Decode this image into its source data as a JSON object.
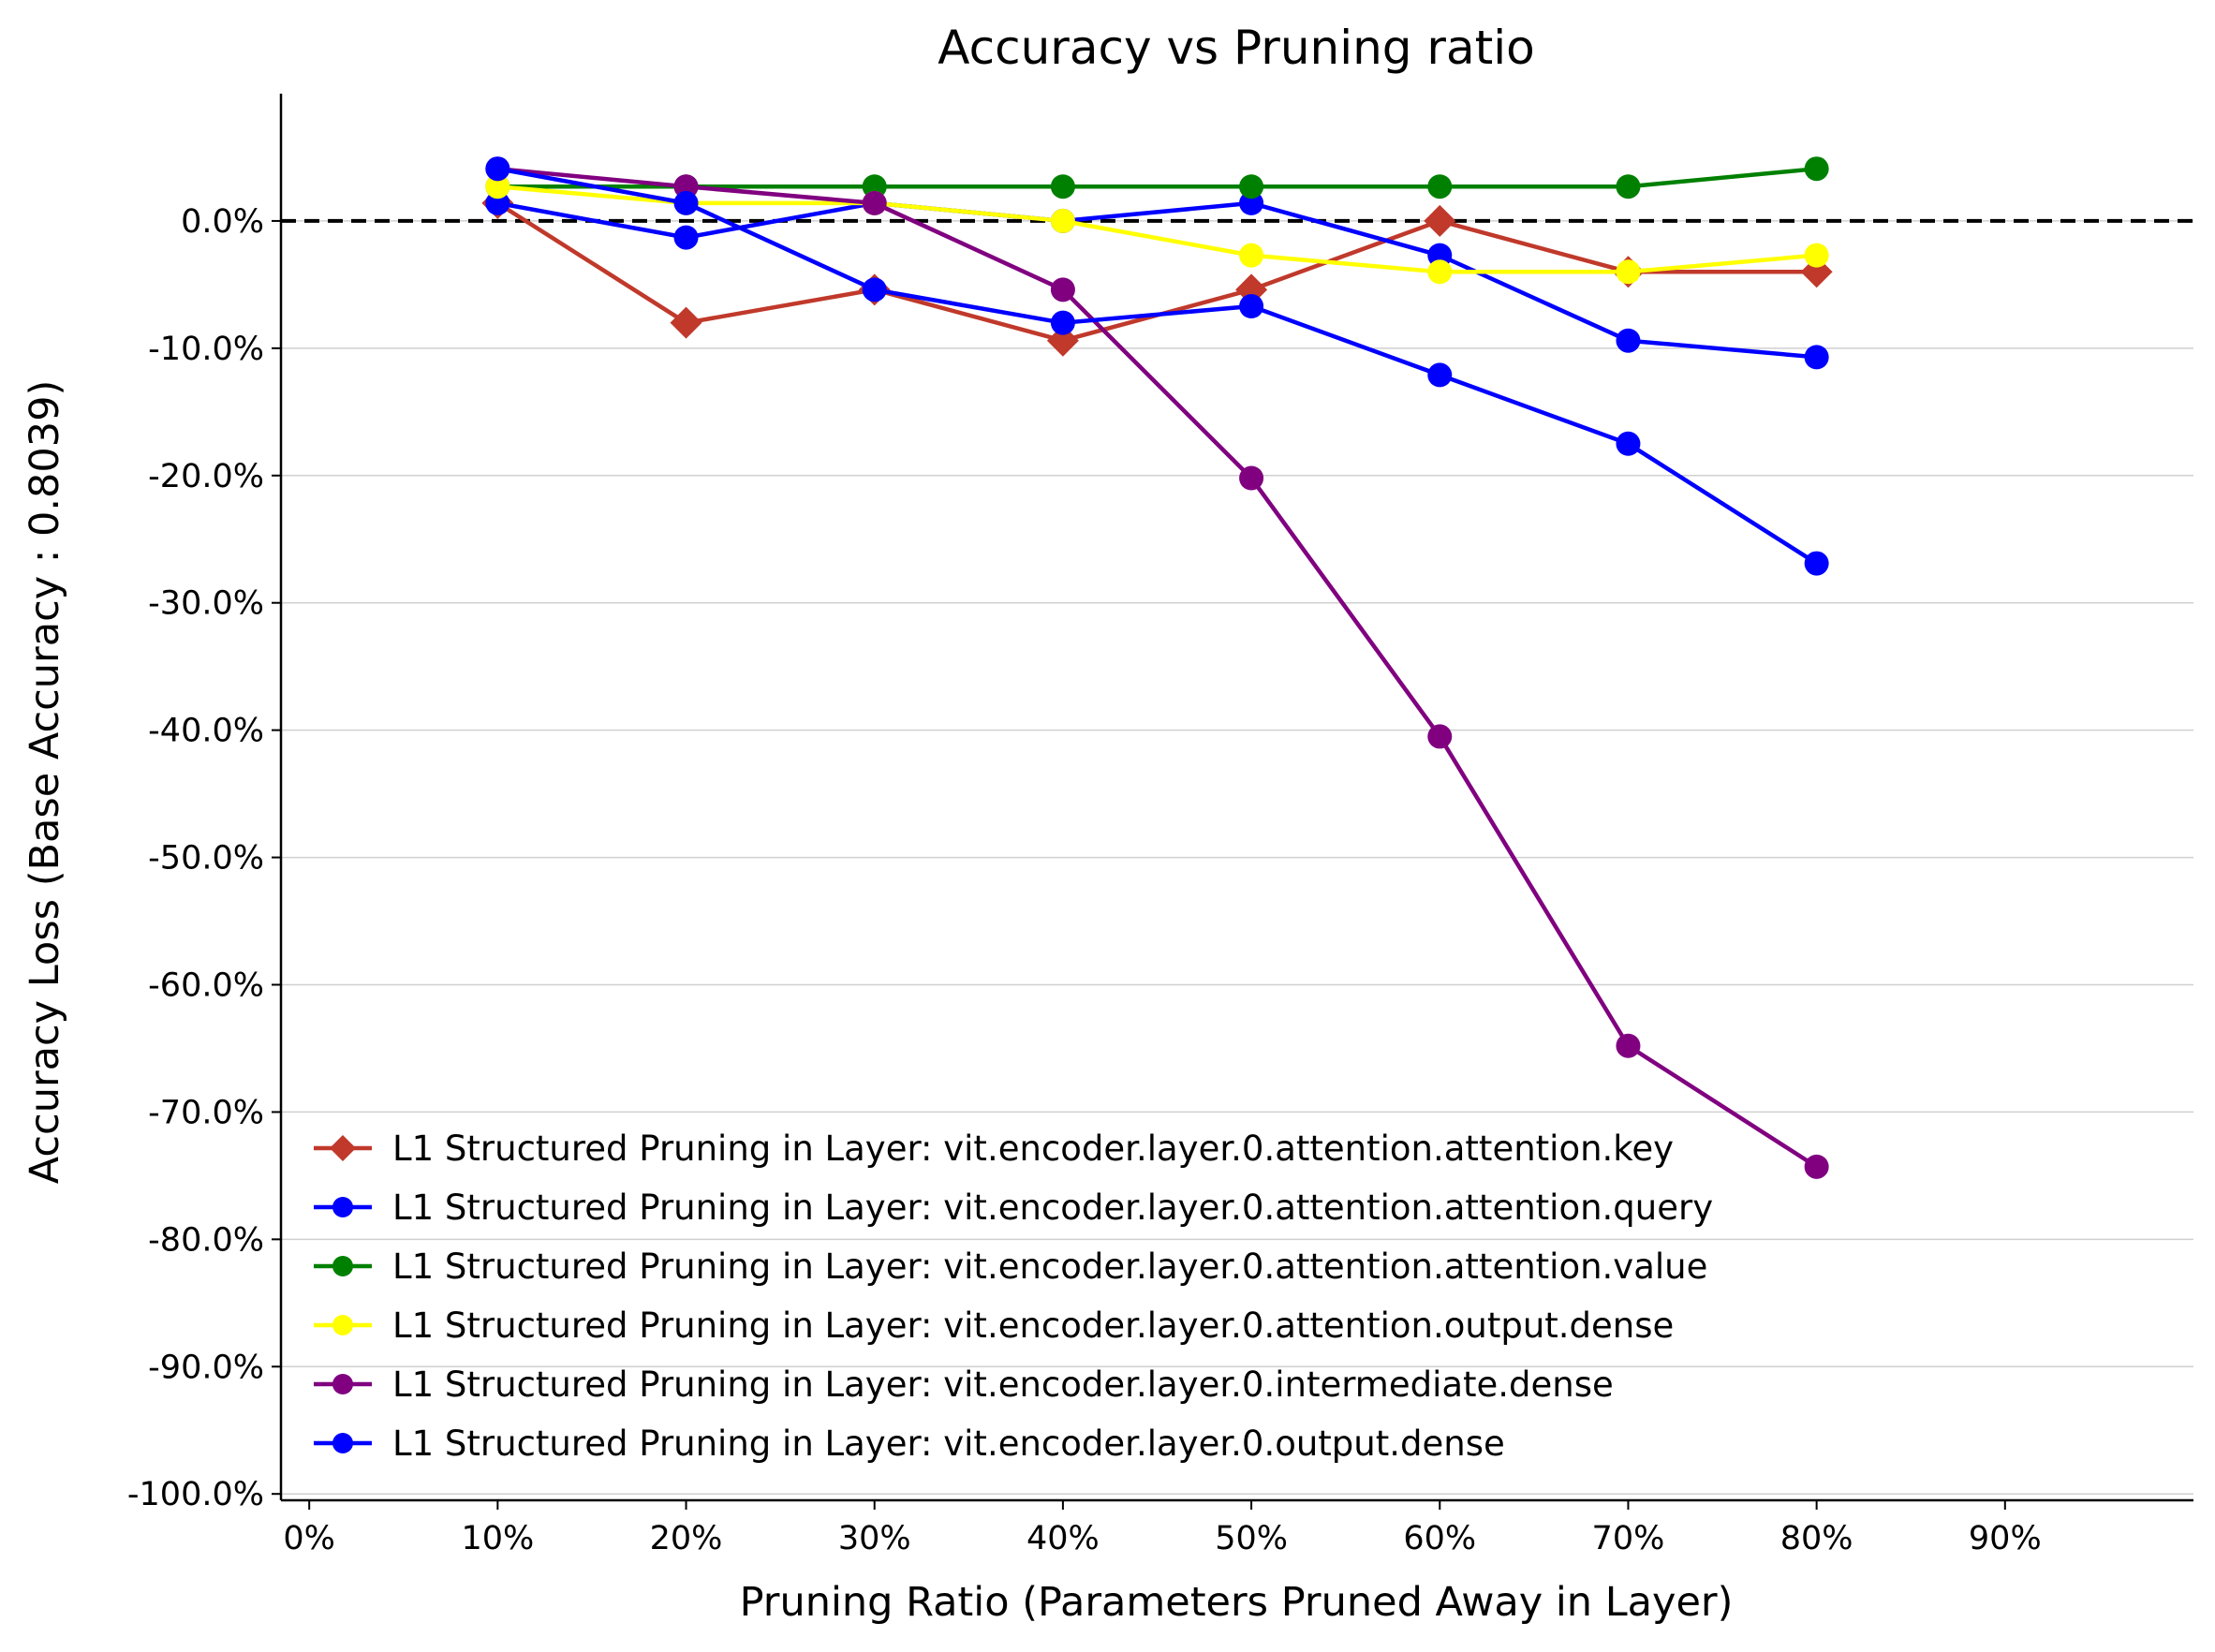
{
  "chart_data": {
    "type": "line",
    "title": "Accuracy vs Pruning ratio",
    "xlabel": "Pruning Ratio (Parameters Pruned Away in Layer)",
    "ylabel": "Accuracy Loss (Base Accuracy : 0.8039)",
    "xlim": [
      -0.015,
      1.0
    ],
    "ylim": [
      -1.005,
      0.1
    ],
    "x_ticks": [
      0.0,
      0.1,
      0.2,
      0.3,
      0.4,
      0.5,
      0.6,
      0.7,
      0.8,
      0.9
    ],
    "x_tick_labels": [
      "0%",
      "10%",
      "20%",
      "30%",
      "40%",
      "50%",
      "60%",
      "70%",
      "80%",
      "90%"
    ],
    "y_ticks": [
      0.0,
      -0.1,
      -0.2,
      -0.3,
      -0.4,
      -0.5,
      -0.6,
      -0.7,
      -0.8,
      -0.9,
      -1.0
    ],
    "y_tick_labels": [
      "0.0%",
      "-10.0%",
      "-20.0%",
      "-30.0%",
      "-40.0%",
      "-50.0%",
      "-60.0%",
      "-70.0%",
      "-80.0%",
      "-90.0%",
      "-100.0%"
    ],
    "horizontal_grid": true,
    "reference_line": {
      "y": 0.0,
      "style": "dashed",
      "color": "#000000"
    },
    "legend_position": "lower-left",
    "x": [
      0.1,
      0.2,
      0.3,
      0.4,
      0.5,
      0.6,
      0.7,
      0.8
    ],
    "series": [
      {
        "name": "L1 Structured Pruning in Layer: vit.encoder.layer.0.attention.attention.key",
        "color": "#c0392b",
        "marker": "diamond",
        "values": [
          0.014,
          -0.08,
          -0.054,
          -0.094,
          -0.054,
          0.0,
          -0.04,
          -0.04
        ]
      },
      {
        "name": "L1 Structured Pruning in Layer: vit.encoder.layer.0.attention.attention.query",
        "color": "#0000ff",
        "marker": "circle",
        "values": [
          0.014,
          -0.013,
          0.014,
          0.0,
          0.014,
          -0.027,
          -0.094,
          -0.107
        ]
      },
      {
        "name": "L1 Structured Pruning in Layer: vit.encoder.layer.0.attention.attention.value",
        "color": "#008000",
        "marker": "circle",
        "values": [
          0.027,
          0.027,
          0.027,
          0.027,
          0.027,
          0.027,
          0.027,
          0.041
        ]
      },
      {
        "name": "L1 Structured Pruning in Layer: vit.encoder.layer.0.attention.output.dense",
        "color": "#ffff00",
        "marker": "circle",
        "values": [
          0.027,
          0.014,
          0.014,
          0.0,
          -0.027,
          -0.04,
          -0.04,
          -0.027
        ]
      },
      {
        "name": "L1 Structured Pruning in Layer: vit.encoder.layer.0.intermediate.dense",
        "color": "#800080",
        "marker": "circle",
        "values": [
          0.041,
          0.027,
          0.014,
          -0.054,
          -0.202,
          -0.405,
          -0.648,
          -0.743
        ]
      },
      {
        "name": "L1 Structured Pruning in Layer: vit.encoder.layer.0.output.dense",
        "color": "#0000ff",
        "marker": "circle",
        "values": [
          0.041,
          0.014,
          -0.054,
          -0.08,
          -0.067,
          -0.121,
          -0.175,
          -0.269
        ]
      }
    ]
  }
}
